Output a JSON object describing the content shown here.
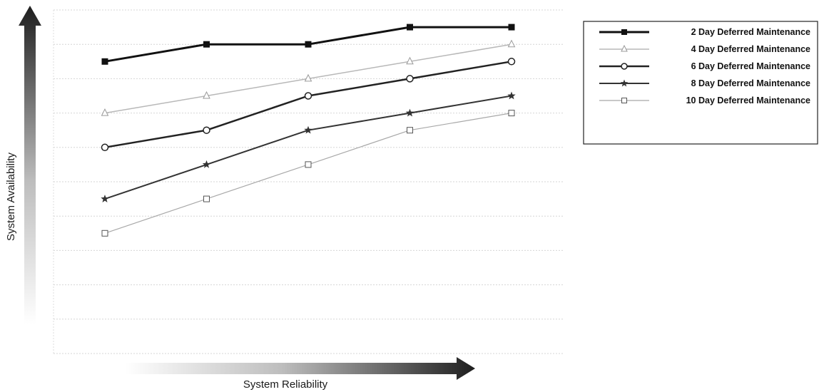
{
  "chart_data": {
    "type": "line",
    "title": "",
    "xlabel": "System Reliability",
    "ylabel": "System Availability",
    "x": [
      1,
      2,
      3,
      4,
      5
    ],
    "ylim": [
      0,
      10
    ],
    "grid": true,
    "legend_position": "top-right",
    "series": [
      {
        "name": "2 Day Deferred Maintenance",
        "values": [
          8.5,
          9.0,
          9.0,
          9.5,
          9.5
        ],
        "color": "#111111",
        "marker": "square-filled",
        "stroke_width": 3
      },
      {
        "name": "4 Day Deferred Maintenance",
        "values": [
          7.0,
          7.5,
          8.0,
          8.5,
          9.0
        ],
        "color": "#b8b8b8",
        "marker": "triangle-open",
        "stroke_width": 1.5
      },
      {
        "name": "6 Day Deferred Maintenance",
        "values": [
          6.0,
          6.5,
          7.5,
          8.0,
          8.5
        ],
        "color": "#222222",
        "marker": "circle-open",
        "stroke_width": 2.5
      },
      {
        "name": "8 Day Deferred Maintenance",
        "values": [
          4.5,
          5.5,
          6.5,
          7.0,
          7.5
        ],
        "color": "#333333",
        "marker": "star-filled",
        "stroke_width": 2
      },
      {
        "name": "10 Day Deferred Maintenance",
        "values": [
          3.5,
          4.5,
          5.5,
          6.5,
          7.0
        ],
        "color": "#a8a8a8",
        "marker": "square-open",
        "stroke_width": 1.2
      }
    ]
  }
}
